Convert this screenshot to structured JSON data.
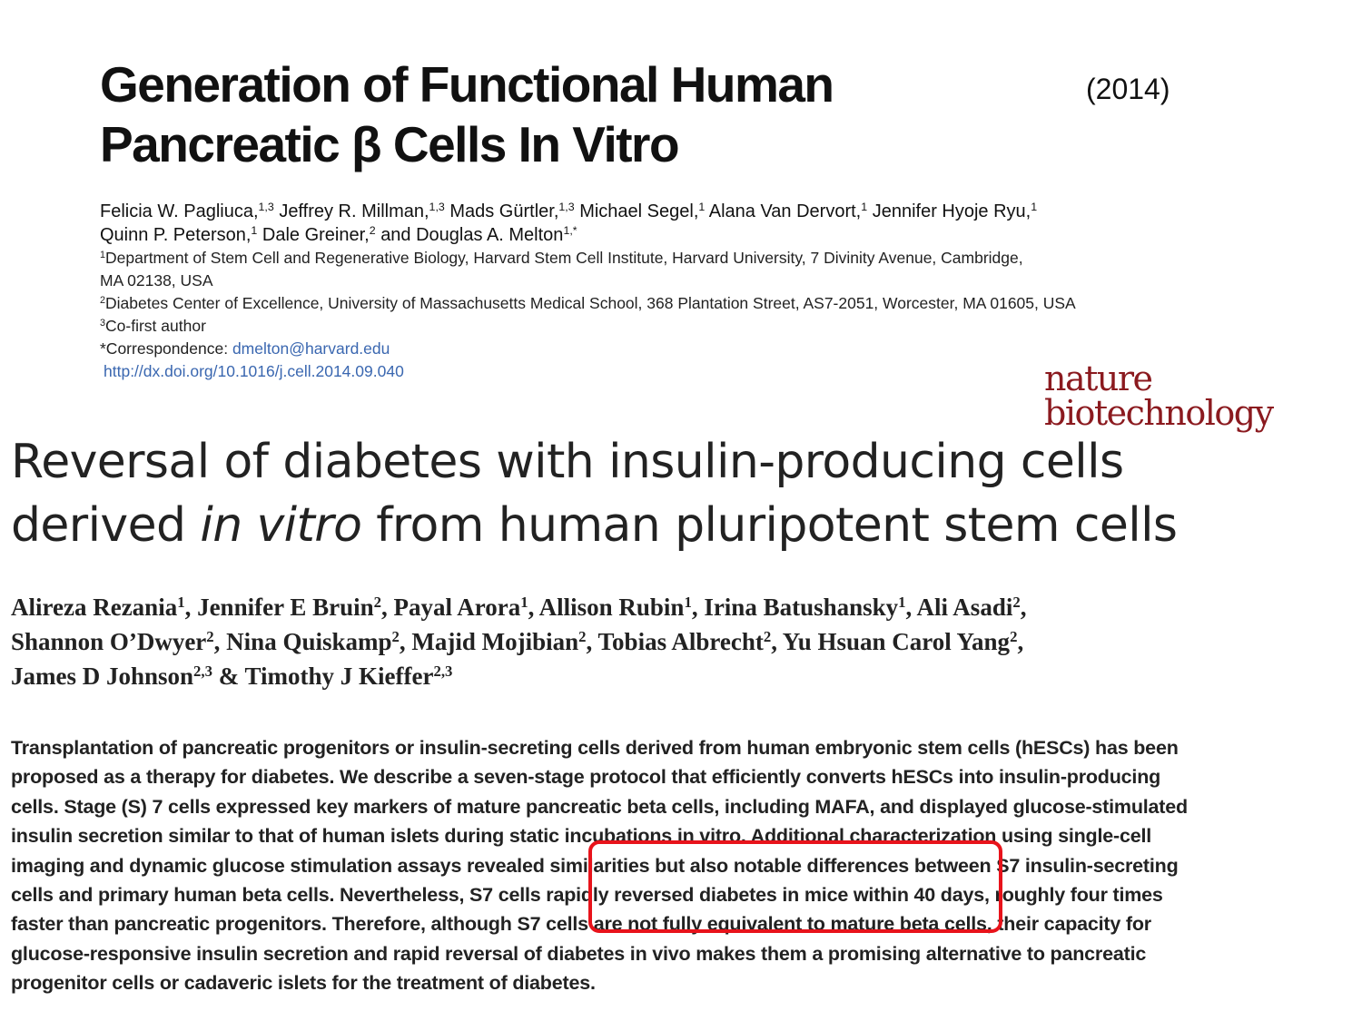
{
  "paper1": {
    "title_lines": [
      "Generation of Functional Human",
      "Pancreatic β Cells In Vitro"
    ],
    "year": "(2014)",
    "authors": [
      {
        "name": "Felicia W. Pagliuca,",
        "sup": "1,3"
      },
      {
        "name": "Jeffrey R. Millman,",
        "sup": "1,3"
      },
      {
        "name": "Mads Gürtler,",
        "sup": "1,3"
      },
      {
        "name": "Michael Segel,",
        "sup": "1"
      },
      {
        "name": "Alana Van Dervort,",
        "sup": "1"
      },
      {
        "name": "Jennifer Hyoje Ryu,",
        "sup": "1"
      },
      {
        "name": "Quinn P. Peterson,",
        "sup": "1"
      },
      {
        "name": "Dale Greiner,",
        "sup": "2"
      },
      {
        "name": "and Douglas A. Melton",
        "sup": "1,*"
      }
    ],
    "affiliations": [
      {
        "sup": "1",
        "text": "Department of Stem Cell and Regenerative Biology, Harvard Stem Cell Institute, Harvard University, 7 Divinity Avenue, Cambridge,"
      },
      {
        "sup": "",
        "text": "MA 02138, USA"
      },
      {
        "sup": "2",
        "text": "Diabetes Center of Excellence, University of Massachusetts Medical School, 368 Plantation Street, AS7-2051, Worcester, MA 01605, USA"
      },
      {
        "sup": "3",
        "text": "Co-first author"
      }
    ],
    "correspondence_label": "*Correspondence:",
    "email": "dmelton@harvard.edu",
    "doi": "http://dx.doi.org/10.1016/j.cell.2014.09.040"
  },
  "journal_logo": {
    "line1": "nature",
    "line2": "biotechnology",
    "color": "#8b1a1f"
  },
  "paper2": {
    "title_line1": "Reversal of diabetes with insulin-producing cells",
    "title_line2_pre": "derived",
    "title_line2_italic": "in vitro",
    "title_line2_post": "from human pluripotent stem cells",
    "authors": [
      {
        "name": "Alireza Rezania",
        "sup": "1",
        "sep": ", "
      },
      {
        "name": "Jennifer E Bruin",
        "sup": "2",
        "sep": ", "
      },
      {
        "name": "Payal Arora",
        "sup": "1",
        "sep": ", "
      },
      {
        "name": "Allison Rubin",
        "sup": "1",
        "sep": ", "
      },
      {
        "name": "Irina Batushansky",
        "sup": "1",
        "sep": ", "
      },
      {
        "name": "Ali Asadi",
        "sup": "2",
        "sep": ","
      },
      {
        "name": "Shannon O’Dwyer",
        "sup": "2",
        "sep": ", "
      },
      {
        "name": "Nina Quiskamp",
        "sup": "2",
        "sep": ", "
      },
      {
        "name": "Majid Mojibian",
        "sup": "2",
        "sep": ", "
      },
      {
        "name": "Tobias Albrecht",
        "sup": "2",
        "sep": ", "
      },
      {
        "name": "Yu Hsuan Carol Yang",
        "sup": "2",
        "sep": ","
      },
      {
        "name": "James D Johnson",
        "sup": "2,3",
        "sep": " & "
      },
      {
        "name": "Timothy J Kieffer",
        "sup": "2,3",
        "sep": ""
      }
    ],
    "abstract_lines": [
      "Transplantation of pancreatic progenitors or insulin-secreting cells derived from human embryonic stem cells (hESCs) has been",
      "proposed as a therapy for diabetes. We describe a seven-stage protocol that efficiently converts hESCs into insulin-producing",
      "cells. Stage (S) 7 cells expressed key markers of mature pancreatic beta cells, including MAFA, and displayed glucose-stimulated",
      "insulin secretion similar to that of human islets during static incubations in vitro. Additional characterization using single-cell",
      "imaging and dynamic glucose stimulation assays revealed similarities but also notable differences between S7 insulin-secreting",
      "cells and primary human beta cells. Nevertheless, S7 cells rapidly reversed diabetes in mice within 40 days, roughly four times",
      "faster than pancreatic progenitors. Therefore, although S7 cells are not fully equivalent to mature beta cells, their capacity for",
      "glucose-responsive insulin secretion and rapid reversal of diabetes in vivo makes them a promising alternative to pancreatic",
      "progenitor cells or cadaveric islets for the treatment of diabetes."
    ]
  },
  "highlight_color": "#e8131b"
}
